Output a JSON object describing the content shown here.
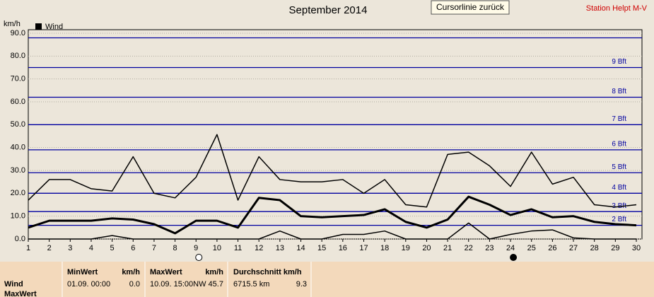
{
  "chart_data": {
    "type": "line",
    "title": "September 2014",
    "y_unit": "km/h",
    "x": [
      1,
      2,
      3,
      4,
      5,
      6,
      7,
      8,
      9,
      10,
      11,
      12,
      13,
      14,
      15,
      16,
      17,
      18,
      19,
      20,
      21,
      22,
      23,
      24,
      25,
      26,
      27,
      28,
      29,
      30
    ],
    "xlim": [
      1,
      30
    ],
    "xticks": [
      1,
      2,
      3,
      4,
      5,
      6,
      7,
      8,
      9,
      10,
      11,
      12,
      13,
      14,
      15,
      16,
      17,
      18,
      19,
      20,
      21,
      22,
      23,
      24,
      25,
      26,
      27,
      28,
      29,
      30
    ],
    "ylim": [
      0,
      90
    ],
    "yticks": [
      {
        "value": 0,
        "label": "0.0"
      },
      {
        "value": 10,
        "label": "10.0"
      },
      {
        "value": 20,
        "label": "20.0"
      },
      {
        "value": 30,
        "label": "30.0"
      },
      {
        "value": 40,
        "label": "40.0"
      },
      {
        "value": 50,
        "label": "50.0"
      },
      {
        "value": 60,
        "label": "60.0"
      },
      {
        "value": 70,
        "label": "70.0"
      },
      {
        "value": 80,
        "label": "80.0"
      },
      {
        "value": 90,
        "label": "90.0"
      }
    ],
    "grid": true,
    "legend": "top-left",
    "series": [
      {
        "name": "Wind",
        "color": "#000000",
        "width": 3,
        "values": [
          5,
          8,
          8,
          8,
          9,
          8.5,
          6.5,
          2.5,
          8,
          8,
          5,
          18,
          17,
          10,
          9.5,
          10,
          10.5,
          13,
          7.5,
          5,
          8.5,
          18.5,
          15,
          10.5,
          13,
          9.5,
          10,
          7.5,
          6.5,
          6
        ]
      },
      {
        "color": "#000000",
        "width": 1.5,
        "values": [
          17,
          26,
          26,
          22,
          21,
          36,
          20,
          18,
          27,
          45.7,
          17,
          36,
          26,
          25,
          25,
          26,
          20,
          26,
          15,
          14,
          37,
          38,
          32,
          23,
          38,
          24,
          27,
          15,
          14,
          15
        ]
      },
      {
        "color": "#000000",
        "width": 1.5,
        "values": [
          0,
          0,
          0,
          0,
          1.5,
          0,
          0,
          0,
          0,
          0,
          0,
          0,
          3.5,
          0,
          0,
          2,
          2,
          3.5,
          0,
          0,
          0,
          7,
          0,
          2,
          3.5,
          4,
          0.5,
          0,
          0,
          0
        ]
      }
    ],
    "beaufort": {
      "color": "#0000a0",
      "values": [
        6,
        12,
        20,
        29,
        39,
        50,
        62,
        75,
        88
      ],
      "labels": [
        "2 Bft",
        "3 Bft",
        "4 Bft",
        "5 Bft",
        "6 Bft",
        "7 Bft",
        "8 Bft",
        "9 Bft",
        null
      ]
    },
    "moon_markers": [
      {
        "x": 9,
        "fill": "none"
      },
      {
        "x": 24,
        "fill": "#000000"
      }
    ]
  },
  "toolbar": {
    "button": "Cursorlinie zurück",
    "station": "Station Helpt M-V"
  },
  "summary": {
    "row_labels": [
      "Wind",
      "MaxWert"
    ],
    "min": {
      "header": "MinWert",
      "unit": "km/h",
      "time": "01.09.  00:00",
      "value": "0.0"
    },
    "max": {
      "header": "MaxWert",
      "unit": "km/h",
      "time": "10.09.  15:00NW 45.7"
    },
    "avg": {
      "header": "Durchschnitt km/h",
      "distance": "6715.5 km",
      "value": "9.3"
    }
  }
}
